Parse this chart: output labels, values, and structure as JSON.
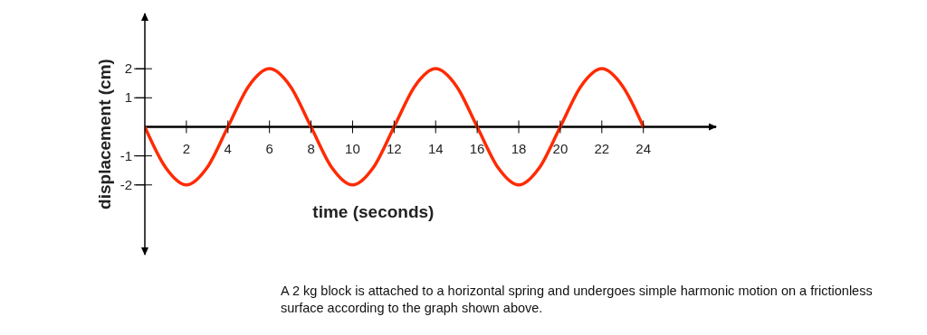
{
  "chart_data": {
    "type": "line",
    "xlabel": "time (seconds)",
    "ylabel": "displacement (cm)",
    "x": [
      0,
      1,
      2,
      3,
      4,
      5,
      6,
      7,
      8,
      9,
      10,
      11,
      12,
      13,
      14,
      15,
      16,
      17,
      18,
      19,
      20,
      21,
      22,
      23,
      24
    ],
    "series": [
      {
        "color": "#ff2a00",
        "values": [
          0,
          -1.4,
          -2,
          -1.4,
          0,
          1.4,
          2,
          1.4,
          0,
          -1.4,
          -2,
          -1.4,
          0,
          1.4,
          2,
          1.4,
          0,
          -1.4,
          -2,
          -1.4,
          0,
          1.4,
          2,
          1.4,
          0
        ]
      }
    ],
    "xlim": [
      0,
      27.5
    ],
    "ylim": [
      -4.4,
      3.9
    ],
    "xticks": [
      2,
      4,
      6,
      8,
      10,
      12,
      14,
      16,
      18,
      20,
      22,
      24
    ],
    "yticks": [
      -2,
      -1,
      1,
      2
    ],
    "marker": "none",
    "grid": false,
    "legend": false,
    "annotations": [
      "A 2 kg block is attached to a horizontal spring and undergoes simple harmonic motion on a frictionless surface according to the graph shown above."
    ]
  }
}
